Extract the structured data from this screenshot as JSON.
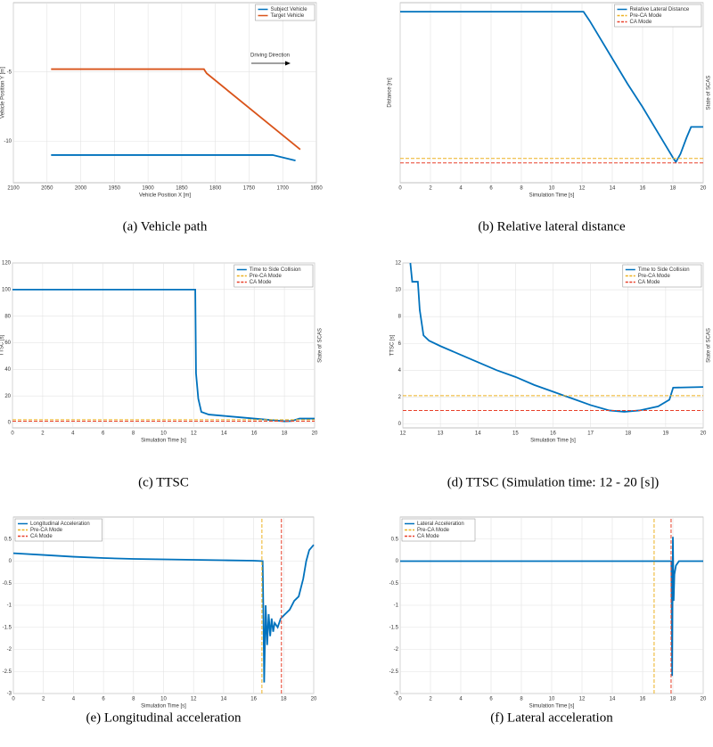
{
  "chart_data": [
    {
      "type": "line",
      "title": "(a) Vehicle path",
      "xlabel": "Vehicle Position X [m]",
      "ylabel": "Vehicle Position Y [m]",
      "xlim": [
        2100,
        1650
      ],
      "xticks": [
        2100,
        2050,
        2000,
        1950,
        1900,
        1850,
        1800,
        1750,
        1700,
        1650
      ],
      "ylim": [
        -13,
        0
      ],
      "yticks": [
        -10,
        -5
      ],
      "grid": true,
      "legend": "upper right",
      "annotations": [
        "Driving Direction"
      ],
      "series": [
        {
          "name": "Subject Vehicle",
          "color": "#0072BD",
          "x": [
            2044,
            1715,
            1681
          ],
          "values": [
            -11,
            -11,
            -11.4
          ]
        },
        {
          "name": "Target Vehicle",
          "color": "#D95319",
          "x": [
            2044,
            1817,
            1813,
            1674
          ],
          "values": [
            -4.8,
            -4.8,
            -5.1,
            -10.6
          ]
        }
      ]
    },
    {
      "type": "line",
      "title": "(b) Relative lateral distance",
      "xlabel": "Simulation Time [s]",
      "ylabel": "Distance [m]",
      "y2label": "State of SCAS",
      "xlim": [
        0,
        20
      ],
      "xticks": [
        0,
        2,
        4,
        6,
        8,
        10,
        12,
        14,
        16,
        18,
        20
      ],
      "ylim": [
        0,
        10
      ],
      "grid": true,
      "legend": "upper right",
      "series": [
        {
          "name": "Relative Lateral Distance",
          "color": "#0072BD",
          "x": [
            0,
            12.1,
            12.5,
            13,
            14,
            15,
            16,
            17,
            17.5,
            18,
            18.2,
            18.5,
            18.9,
            19.2,
            20
          ],
          "values": [
            9.5,
            9.5,
            9.0,
            8.3,
            6.9,
            5.5,
            4.2,
            2.8,
            2.1,
            1.4,
            1.15,
            1.6,
            2.5,
            3.1,
            3.1
          ]
        },
        {
          "name": "Pre-CA Mode",
          "color": "#EDB120",
          "linestyle": "dashed",
          "x": [
            0,
            20
          ],
          "values": [
            1.35,
            1.35
          ]
        },
        {
          "name": "CA Mode",
          "color": "#E8402A",
          "linestyle": "dashed",
          "x": [
            0,
            20
          ],
          "values": [
            1.1,
            1.1
          ]
        }
      ]
    },
    {
      "type": "line",
      "title": "(c) TTSC",
      "xlabel": "Simulation Time [s]",
      "ylabel": "TTSC [s]",
      "y2label": "State of SCAS",
      "xlim": [
        0,
        20
      ],
      "xticks": [
        0,
        2,
        4,
        6,
        8,
        10,
        12,
        14,
        16,
        18,
        20
      ],
      "ylim": [
        -4,
        120
      ],
      "yticks": [
        0,
        20,
        40,
        60,
        80,
        100,
        120
      ],
      "grid": true,
      "legend": "upper right",
      "series": [
        {
          "name": "Time to Side Collision",
          "color": "#0072BD",
          "x": [
            0,
            12.1,
            12.15,
            12.3,
            12.5,
            13,
            14,
            15,
            16,
            17,
            18,
            18.5,
            19,
            20
          ],
          "values": [
            100,
            100,
            37,
            18,
            8,
            6,
            5,
            4,
            3,
            2,
            1,
            1.2,
            3,
            3
          ]
        },
        {
          "name": "Pre-CA Mode",
          "color": "#EDB120",
          "linestyle": "dashed",
          "x": [
            0,
            20
          ],
          "values": [
            2.1,
            2.1
          ]
        },
        {
          "name": "CA Mode",
          "color": "#E8402A",
          "linestyle": "dashed",
          "x": [
            0,
            20
          ],
          "values": [
            1.0,
            1.0
          ]
        }
      ]
    },
    {
      "type": "line",
      "title": "(d) TTSC (Simulation time: 12 - 20 [s])",
      "xlabel": "Simulation Time [s]",
      "ylabel": "TTSC [s]",
      "y2label": "State of SCAS",
      "xlim": [
        12,
        20
      ],
      "xticks": [
        12,
        13,
        14,
        15,
        16,
        17,
        18,
        19,
        20
      ],
      "ylim": [
        -0.3,
        12
      ],
      "yticks": [
        0,
        2,
        4,
        6,
        8,
        10,
        12
      ],
      "grid": true,
      "legend": "upper right",
      "series": [
        {
          "name": "Time to Side Collision",
          "color": "#0072BD",
          "x": [
            12.2,
            12.25,
            12.4,
            12.45,
            12.55,
            12.7,
            13,
            13.5,
            14,
            14.5,
            15,
            15.5,
            16,
            16.5,
            17,
            17.5,
            17.9,
            18.3,
            18.8,
            19.1,
            19.2,
            20
          ],
          "values": [
            12,
            10.6,
            10.6,
            8.5,
            6.6,
            6.2,
            5.8,
            5.2,
            4.6,
            4.0,
            3.5,
            2.9,
            2.4,
            1.9,
            1.4,
            1.0,
            0.9,
            1.0,
            1.3,
            1.8,
            2.7,
            2.75
          ]
        },
        {
          "name": "Pre-CA Mode",
          "color": "#EDB120",
          "linestyle": "dashed",
          "x": [
            12,
            20
          ],
          "values": [
            2.1,
            2.1
          ]
        },
        {
          "name": "CA Mode",
          "color": "#E8402A",
          "linestyle": "dashed",
          "x": [
            12,
            20
          ],
          "values": [
            1.0,
            1.0
          ]
        }
      ]
    },
    {
      "type": "line",
      "title": "(e) Longitudinal acceleration",
      "xlabel": "Simulation Time [s]",
      "xlim": [
        0,
        20
      ],
      "xticks": [
        0,
        2,
        4,
        6,
        8,
        10,
        12,
        14,
        16,
        18,
        20
      ],
      "ylim": [
        -3,
        1
      ],
      "yticks": [
        -3,
        -2.5,
        -2,
        -1.5,
        -1,
        -0.5,
        0,
        0.5
      ],
      "grid": true,
      "legend": "upper left",
      "series": [
        {
          "name": "Longitudinal Acceleration",
          "color": "#0072BD",
          "x": [
            0,
            2,
            4,
            6,
            8,
            10,
            12,
            14,
            16,
            16.6,
            16.65,
            16.7,
            16.8,
            16.9,
            17.0,
            17.1,
            17.2,
            17.3,
            17.4,
            17.6,
            17.8,
            18.1,
            18.4,
            18.7,
            19.0,
            19.3,
            19.5,
            19.7,
            20
          ],
          "values": [
            0.18,
            0.14,
            0.1,
            0.07,
            0.05,
            0.04,
            0.03,
            0.02,
            0.01,
            0,
            -1.2,
            -2.75,
            -1.0,
            -1.9,
            -1.2,
            -1.7,
            -1.3,
            -1.6,
            -1.4,
            -1.5,
            -1.3,
            -1.2,
            -1.1,
            -0.9,
            -0.8,
            -0.4,
            0,
            0.25,
            0.37
          ]
        },
        {
          "name": "Pre-CA Mode",
          "color": "#EDB120",
          "linestyle": "dashed",
          "x": [
            16.55,
            16.55
          ],
          "values": [
            -3,
            1
          ]
        },
        {
          "name": "CA Mode",
          "color": "#E8402A",
          "linestyle": "dashed",
          "x": [
            17.85,
            17.85
          ],
          "values": [
            -3,
            1
          ]
        }
      ]
    },
    {
      "type": "line",
      "title": "(f) Lateral acceleration",
      "xlabel": "Simulation Time [s]",
      "xlim": [
        0,
        20
      ],
      "xticks": [
        0,
        2,
        4,
        6,
        8,
        10,
        12,
        14,
        16,
        18,
        20
      ],
      "ylim": [
        -3,
        1
      ],
      "yticks": [
        -3,
        -2.5,
        -2,
        -1.5,
        -1,
        -0.5,
        0,
        0.5
      ],
      "grid": true,
      "legend": "upper left",
      "series": [
        {
          "name": "Lateral Acceleration",
          "color": "#0072BD",
          "x": [
            0,
            17.9,
            17.95,
            18.0,
            18.05,
            18.1,
            18.2,
            18.4,
            20
          ],
          "values": [
            0,
            0,
            -2.6,
            0.55,
            -0.9,
            -0.3,
            -0.1,
            0,
            0
          ]
        },
        {
          "name": "Pre-CA Mode",
          "color": "#EDB120",
          "linestyle": "dashed",
          "x": [
            16.76,
            16.76
          ],
          "values": [
            -3,
            1
          ]
        },
        {
          "name": "CA Mode",
          "color": "#E8402A",
          "linestyle": "dashed",
          "x": [
            17.88,
            17.88
          ],
          "values": [
            -3,
            1
          ]
        }
      ]
    }
  ]
}
